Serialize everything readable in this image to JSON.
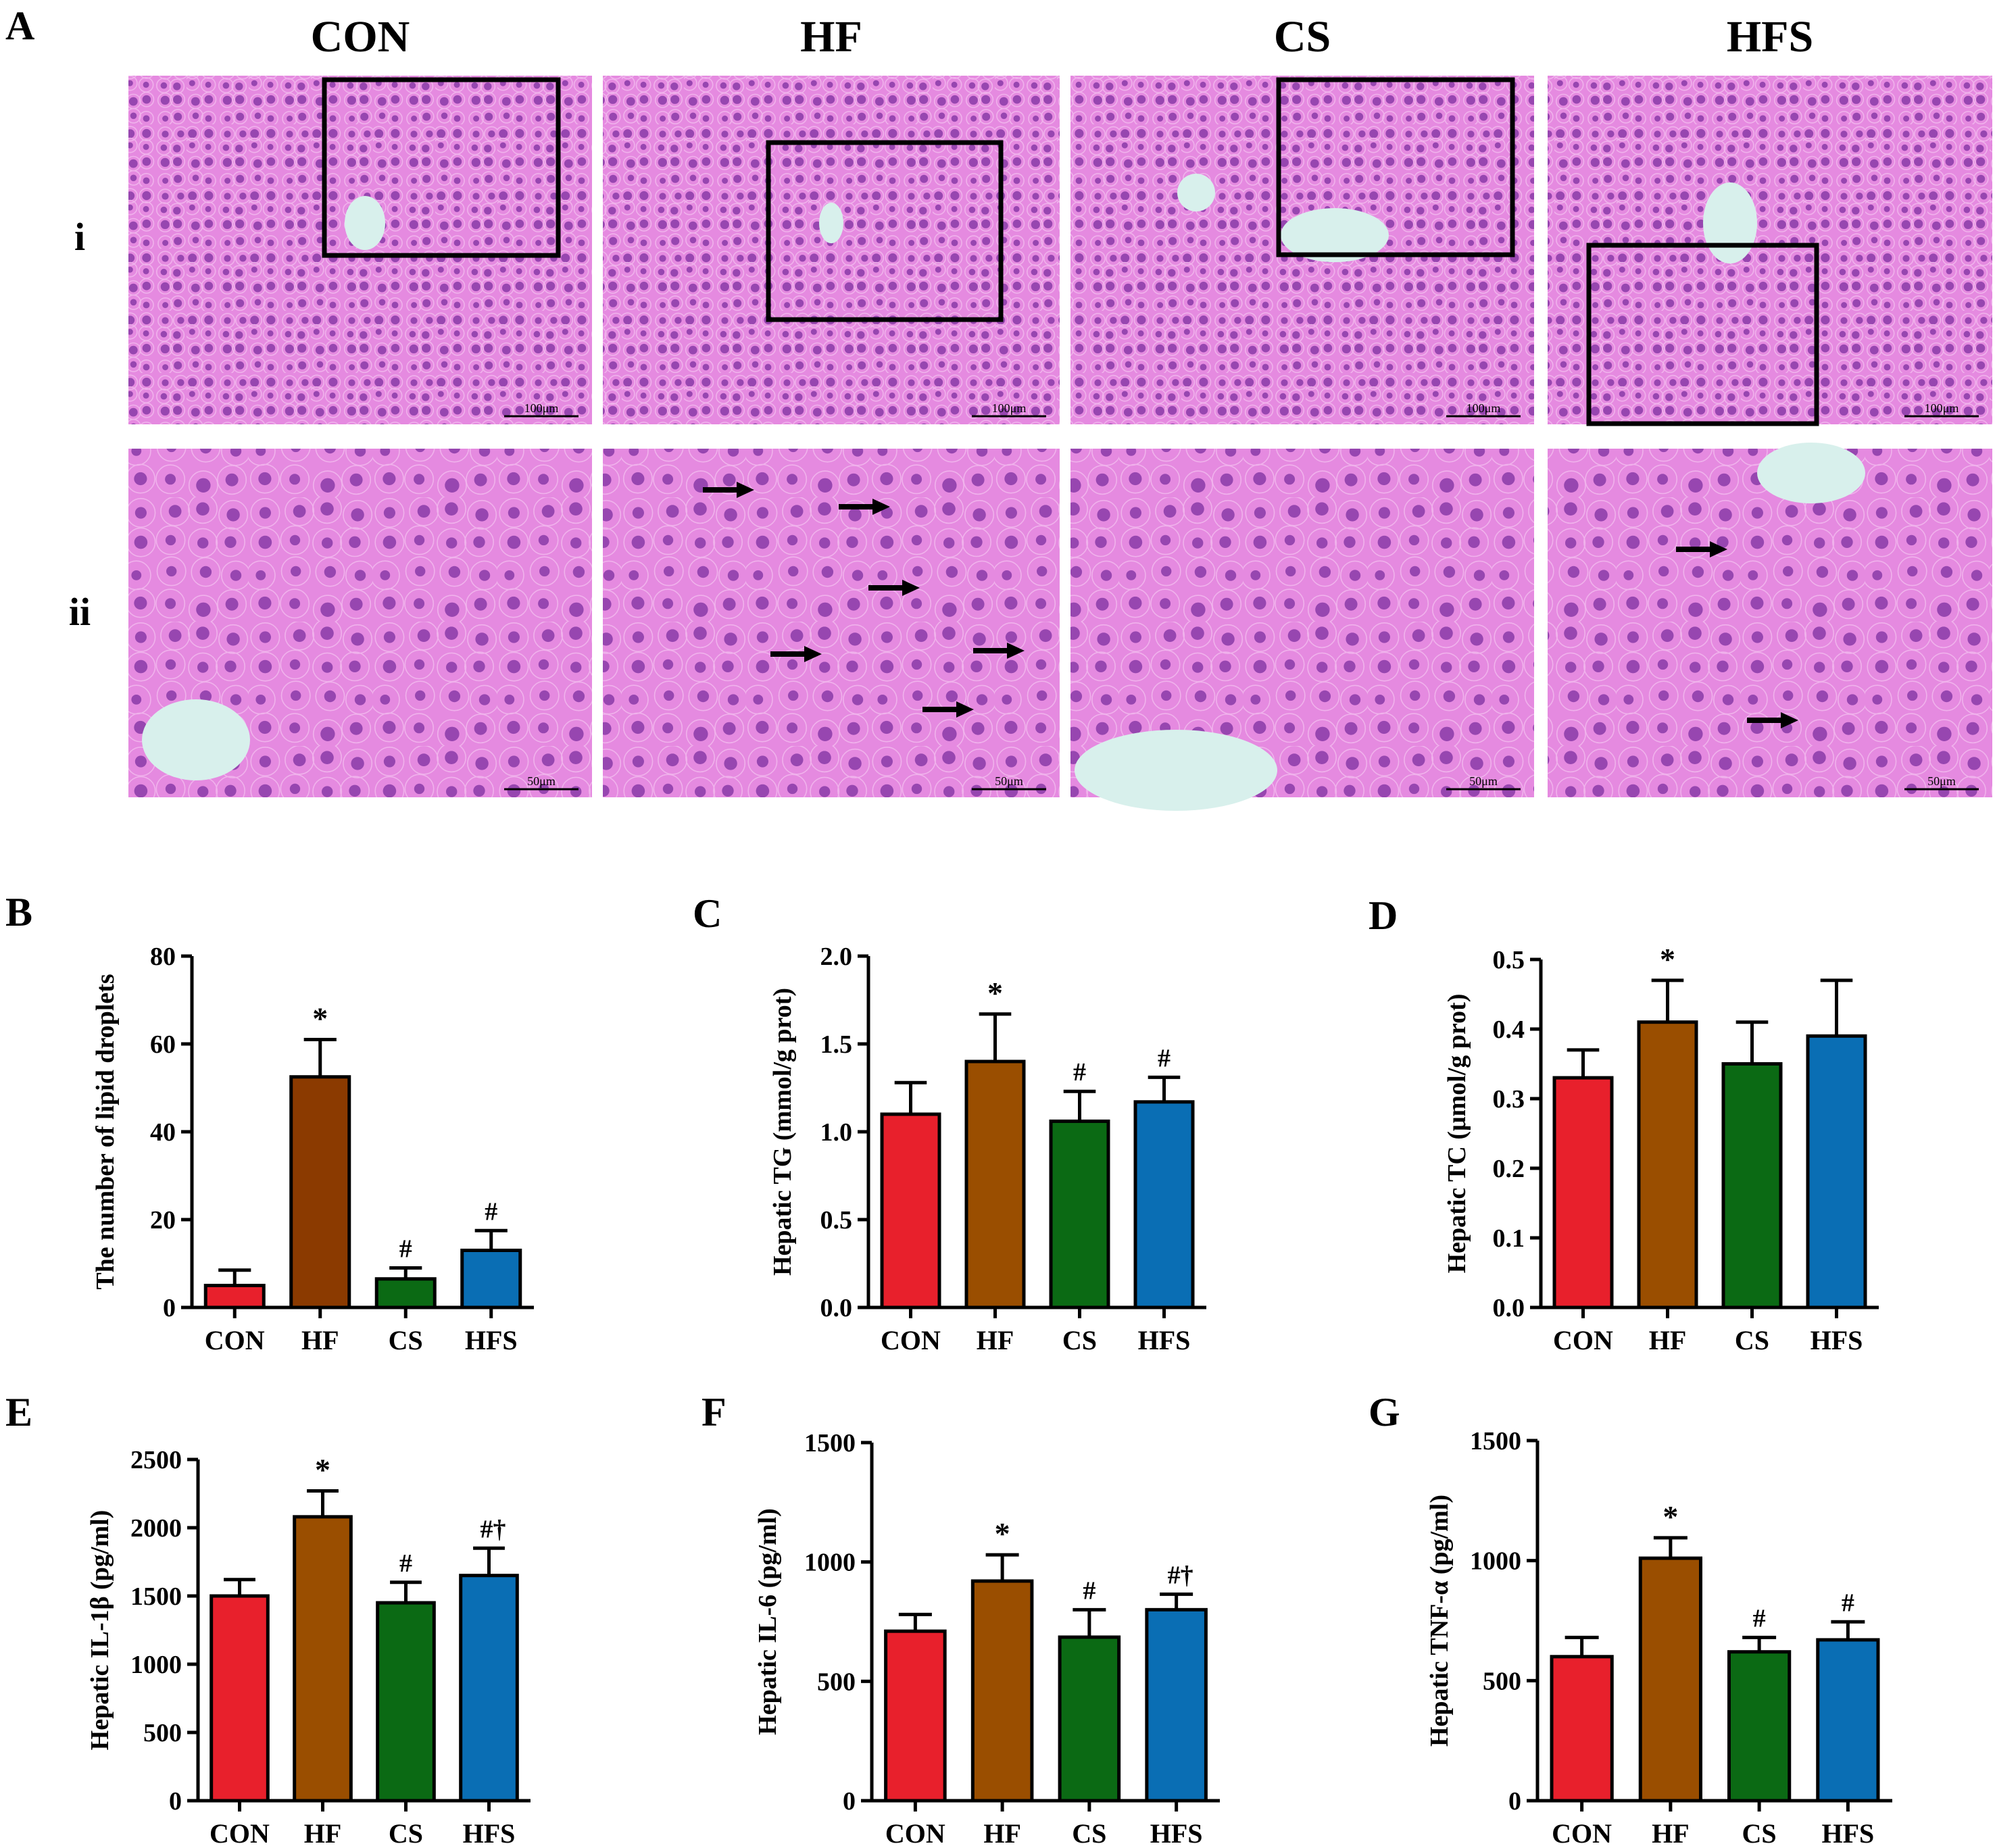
{
  "panel_letters": [
    "A",
    "B",
    "C",
    "D",
    "E",
    "F",
    "G"
  ],
  "histology": {
    "group_headers": [
      "CON",
      "HF",
      "CS",
      "HFS"
    ],
    "row_labels": [
      "i",
      "ii"
    ],
    "scale_bars": {
      "row_i": [
        "100μm",
        "100μm",
        "100μm",
        "100μm"
      ],
      "row_ii": [
        "50μm",
        "50μm",
        "50μm",
        "50μm"
      ]
    },
    "colors": {
      "tissue": "#e58ae0",
      "cell_membrane": "#f0b2ec",
      "nucleus": "#8a3aa8",
      "vessel_lumen": "#d8f0ec",
      "frame": "#000000"
    }
  },
  "chart_data": [
    {
      "panel": "B",
      "type": "bar",
      "categories": [
        "CON",
        "HF",
        "CS",
        "HFS"
      ],
      "values": [
        5,
        52.5,
        6.5,
        13
      ],
      "errors": [
        3.5,
        8.5,
        2.5,
        4.5
      ],
      "significance": [
        "",
        "*",
        "#",
        "#"
      ],
      "ylabel": "The number of lipid droplets",
      "ylim": [
        0,
        80
      ],
      "yticks": [
        "0",
        "20",
        "40",
        "60",
        "80"
      ],
      "bar_colors": [
        "#e8202c",
        "#8b3a00",
        "#0b6a14",
        "#0a6eb4"
      ]
    },
    {
      "panel": "C",
      "type": "bar",
      "categories": [
        "CON",
        "HF",
        "CS",
        "HFS"
      ],
      "values": [
        1.1,
        1.4,
        1.06,
        1.17
      ],
      "errors": [
        0.18,
        0.27,
        0.17,
        0.14
      ],
      "significance": [
        "",
        "*",
        "#",
        "#"
      ],
      "ylabel": "Hepatic TG (mmol/g prot)",
      "ylim": [
        0,
        2.0
      ],
      "yticks": [
        "0.0",
        "0.5",
        "1.0",
        "1.5",
        "2.0"
      ],
      "bar_colors": [
        "#e8202c",
        "#9a4e00",
        "#0b6a14",
        "#0a6eb4"
      ]
    },
    {
      "panel": "D",
      "type": "bar",
      "categories": [
        "CON",
        "HF",
        "CS",
        "HFS"
      ],
      "values": [
        0.33,
        0.41,
        0.35,
        0.39
      ],
      "errors": [
        0.04,
        0.06,
        0.06,
        0.08
      ],
      "significance": [
        "",
        "*",
        "",
        ""
      ],
      "ylabel": "Hepatic TC (μmol/g prot)",
      "ylim": [
        0,
        0.5
      ],
      "yticks": [
        "0.0",
        "0.1",
        "0.2",
        "0.3",
        "0.4",
        "0.5"
      ],
      "bar_colors": [
        "#e8202c",
        "#9a4e00",
        "#0b6a14",
        "#0a6eb4"
      ]
    },
    {
      "panel": "E",
      "type": "bar",
      "categories": [
        "CON",
        "HF",
        "CS",
        "HFS"
      ],
      "values": [
        1500,
        2080,
        1450,
        1650
      ],
      "errors": [
        120,
        190,
        150,
        200
      ],
      "significance": [
        "",
        "*",
        "#",
        "#†"
      ],
      "ylabel": "Hepatic IL-1β (pg/ml)",
      "ylim": [
        0,
        2500
      ],
      "yticks": [
        "0",
        "500",
        "1000",
        "1500",
        "2000",
        "2500"
      ],
      "bar_colors": [
        "#e8202c",
        "#9a4e00",
        "#0b6a14",
        "#0a6eb4"
      ]
    },
    {
      "panel": "F",
      "type": "bar",
      "categories": [
        "CON",
        "HF",
        "CS",
        "HFS"
      ],
      "values": [
        710,
        920,
        685,
        800
      ],
      "errors": [
        70,
        110,
        115,
        65
      ],
      "significance": [
        "",
        "*",
        "#",
        "#†"
      ],
      "ylabel": "Hepatic IL-6 (pg/ml)",
      "ylim": [
        0,
        1500
      ],
      "yticks": [
        "0",
        "500",
        "1000",
        "1500"
      ],
      "bar_colors": [
        "#e8202c",
        "#9a4e00",
        "#0b6a14",
        "#0a6eb4"
      ]
    },
    {
      "panel": "G",
      "type": "bar",
      "categories": [
        "CON",
        "HF",
        "CS",
        "HFS"
      ],
      "values": [
        600,
        1010,
        620,
        670
      ],
      "errors": [
        80,
        85,
        60,
        75
      ],
      "significance": [
        "",
        "*",
        "#",
        "#"
      ],
      "ylabel": "Hepatic TNF-α (pg/ml)",
      "ylim": [
        0,
        1500
      ],
      "yticks": [
        "0",
        "500",
        "1000",
        "1500"
      ],
      "bar_colors": [
        "#e8202c",
        "#9a4e00",
        "#0b6a14",
        "#0a6eb4"
      ]
    }
  ]
}
